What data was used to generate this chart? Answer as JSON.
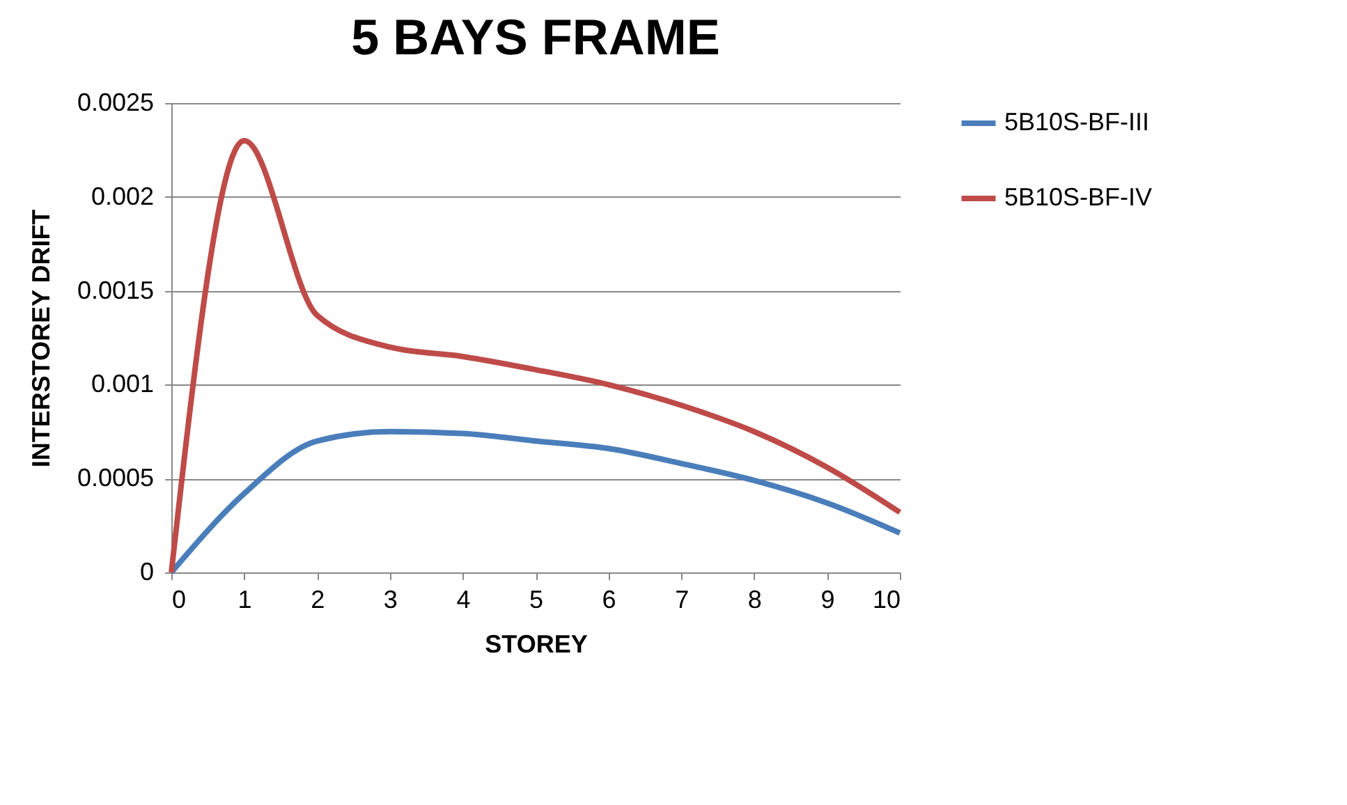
{
  "chart_data": {
    "type": "line",
    "title": "5 BAYS FRAME",
    "xlabel": "STOREY",
    "ylabel": "INTERSTOREY DRIFT",
    "x": [
      0,
      1,
      2,
      3,
      4,
      5,
      6,
      7,
      8,
      9,
      10
    ],
    "series": [
      {
        "name": "5B10S-BF-III",
        "color": "#4a7ebb",
        "values": [
          0,
          0.00042,
          0.0007,
          0.00075,
          0.00074,
          0.0007,
          0.00066,
          0.00058,
          0.00049,
          0.00037,
          0.00021
        ]
      },
      {
        "name": "5B10S-BF-IV",
        "color": "#be4b48",
        "values": [
          0,
          0.0023,
          0.00137,
          0.0012,
          0.00115,
          0.00108,
          0.001,
          0.00089,
          0.00075,
          0.00056,
          0.00032
        ]
      }
    ],
    "xlim": [
      0,
      10
    ],
    "xticks": [
      0,
      1,
      2,
      3,
      4,
      5,
      6,
      7,
      8,
      9,
      10
    ],
    "ylim": [
      0,
      0.0025
    ],
    "yticks": [
      0,
      0.0005,
      0.001,
      0.0015,
      0.002,
      0.0025
    ],
    "grid": "y",
    "legend": "right",
    "marker": "none",
    "line_style": "solid"
  }
}
